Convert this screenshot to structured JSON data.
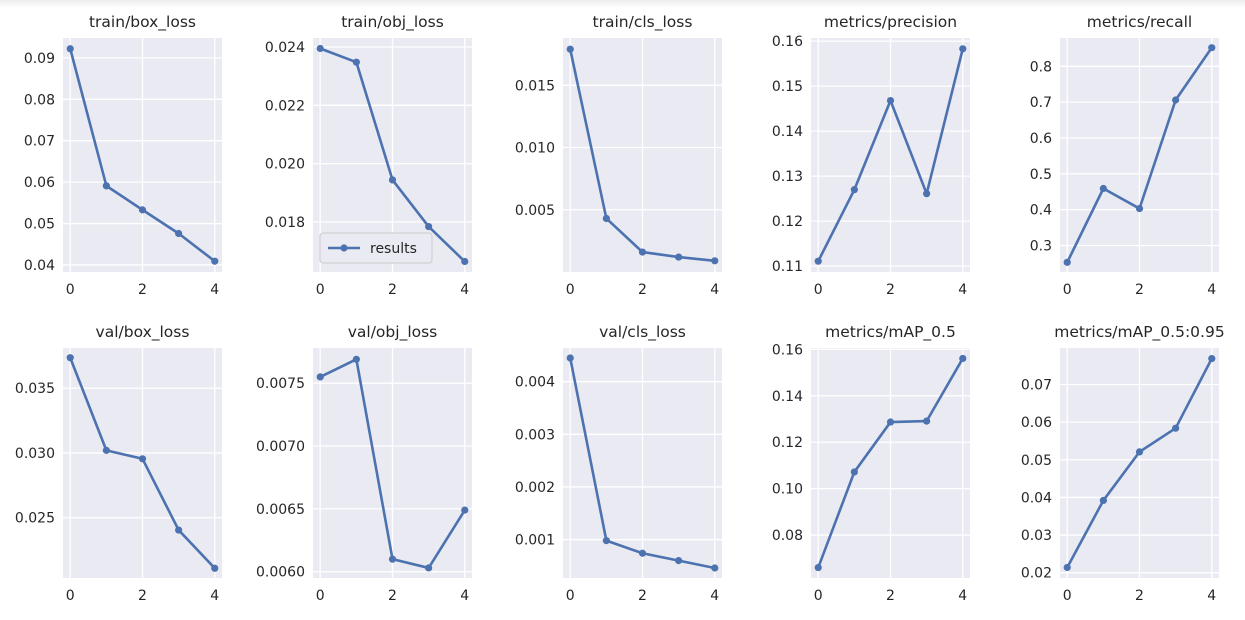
{
  "figure": {
    "accent_color": "#4c72b0",
    "plot_background": "#eaeaf2",
    "grid_color": "#ffffff",
    "legend_label": "results"
  },
  "chart_data": [
    {
      "type": "line",
      "title": "train/box_loss",
      "x": [
        0,
        1,
        2,
        3,
        4
      ],
      "series": [
        {
          "name": "results",
          "values": [
            0.0922,
            0.0591,
            0.0533,
            0.0476,
            0.0409
          ]
        }
      ],
      "xticks": [
        0,
        2,
        4
      ],
      "yticks": [
        0.04,
        0.05,
        0.06,
        0.07,
        0.08,
        0.09
      ],
      "ytick_labels": [
        "0.04",
        "0.05",
        "0.06",
        "0.07",
        "0.08",
        "0.09"
      ],
      "xlim": [
        -0.2,
        4.2
      ],
      "ylim": [
        0.0383,
        0.0948
      ],
      "grid": true,
      "legend": null
    },
    {
      "type": "line",
      "title": "train/obj_loss",
      "x": [
        0,
        1,
        2,
        3,
        4
      ],
      "series": [
        {
          "name": "results",
          "values": [
            0.02395,
            0.02348,
            0.01944,
            0.01784,
            0.01664
          ]
        }
      ],
      "xticks": [
        0,
        2,
        4
      ],
      "yticks": [
        0.018,
        0.02,
        0.022,
        0.024
      ],
      "ytick_labels": [
        "0.018",
        "0.020",
        "0.022",
        "0.024"
      ],
      "xlim": [
        -0.2,
        4.2
      ],
      "ylim": [
        0.01628,
        0.02431
      ],
      "grid": true,
      "legend": "lower-left"
    },
    {
      "type": "line",
      "title": "train/cls_loss",
      "x": [
        0,
        1,
        2,
        3,
        4
      ],
      "series": [
        {
          "name": "results",
          "values": [
            0.0179,
            0.0043,
            0.0016,
            0.0012,
            0.0009
          ]
        }
      ],
      "xticks": [
        0,
        2,
        4
      ],
      "yticks": [
        0.005,
        0.01,
        0.015
      ],
      "ytick_labels": [
        "0.005",
        "0.010",
        "0.015"
      ],
      "xlim": [
        -0.2,
        4.2
      ],
      "ylim": [
        0.0,
        0.0188
      ],
      "grid": true,
      "legend": null
    },
    {
      "type": "line",
      "title": "metrics/precision",
      "x": [
        0,
        1,
        2,
        3,
        4
      ],
      "series": [
        {
          "name": "results",
          "values": [
            0.1111,
            0.127,
            0.1468,
            0.1261,
            0.1583
          ]
        }
      ],
      "xticks": [
        0,
        2,
        4
      ],
      "yticks": [
        0.11,
        0.12,
        0.13,
        0.14,
        0.15,
        0.16
      ],
      "ytick_labels": [
        "0.11",
        "0.12",
        "0.13",
        "0.14",
        "0.15",
        "0.16"
      ],
      "xlim": [
        -0.2,
        4.2
      ],
      "ylim": [
        0.1087,
        0.1607
      ],
      "grid": true,
      "legend": null
    },
    {
      "type": "line",
      "title": "metrics/recall",
      "x": [
        0,
        1,
        2,
        3,
        4
      ],
      "series": [
        {
          "name": "results",
          "values": [
            0.253,
            0.459,
            0.403,
            0.706,
            0.852
          ]
        }
      ],
      "xticks": [
        0,
        2,
        4
      ],
      "yticks": [
        0.3,
        0.4,
        0.5,
        0.6,
        0.7,
        0.8
      ],
      "ytick_labels": [
        "0.3",
        "0.4",
        "0.5",
        "0.6",
        "0.7",
        "0.8"
      ],
      "xlim": [
        -0.2,
        4.2
      ],
      "ylim": [
        0.226,
        0.879
      ],
      "grid": true,
      "legend": null
    },
    {
      "type": "line",
      "title": "val/box_loss",
      "x": [
        0,
        1,
        2,
        3,
        4
      ],
      "series": [
        {
          "name": "results",
          "values": [
            0.03735,
            0.0302,
            0.02955,
            0.02405,
            0.0211
          ]
        }
      ],
      "xticks": [
        0,
        2,
        4
      ],
      "yticks": [
        0.025,
        0.03,
        0.035
      ],
      "ytick_labels": [
        "0.025",
        "0.030",
        "0.035"
      ],
      "xlim": [
        -0.2,
        4.2
      ],
      "ylim": [
        0.02035,
        0.0381
      ],
      "grid": true,
      "legend": null
    },
    {
      "type": "line",
      "title": "val/obj_loss",
      "x": [
        0,
        1,
        2,
        3,
        4
      ],
      "series": [
        {
          "name": "results",
          "values": [
            0.00755,
            0.00769,
            0.0061,
            0.00603,
            0.00649
          ]
        }
      ],
      "xticks": [
        0,
        2,
        4
      ],
      "yticks": [
        0.006,
        0.0065,
        0.007,
        0.0075
      ],
      "ytick_labels": [
        "0.0060",
        "0.0065",
        "0.0070",
        "0.0075"
      ],
      "xlim": [
        -0.2,
        4.2
      ],
      "ylim": [
        0.00595,
        0.00778
      ],
      "grid": true,
      "legend": null
    },
    {
      "type": "line",
      "title": "val/cls_loss",
      "x": [
        0,
        1,
        2,
        3,
        4
      ],
      "series": [
        {
          "name": "results",
          "values": [
            0.00445,
            0.00098,
            0.00074,
            0.0006,
            0.00046
          ]
        }
      ],
      "xticks": [
        0,
        2,
        4
      ],
      "yticks": [
        0.001,
        0.002,
        0.003,
        0.004
      ],
      "ytick_labels": [
        "0.001",
        "0.002",
        "0.003",
        "0.004"
      ],
      "xlim": [
        -0.2,
        4.2
      ],
      "ylim": [
        0.00027,
        0.00464
      ],
      "grid": true,
      "legend": null
    },
    {
      "type": "line",
      "title": "metrics/mAP_0.5",
      "x": [
        0,
        1,
        2,
        3,
        4
      ],
      "series": [
        {
          "name": "results",
          "values": [
            0.066,
            0.1072,
            0.1287,
            0.1291,
            0.1561
          ]
        }
      ],
      "xticks": [
        0,
        2,
        4
      ],
      "yticks": [
        0.08,
        0.1,
        0.12,
        0.14,
        0.16
      ],
      "ytick_labels": [
        "0.08",
        "0.10",
        "0.12",
        "0.14",
        "0.16"
      ],
      "xlim": [
        -0.2,
        4.2
      ],
      "ylim": [
        0.0615,
        0.1606
      ],
      "grid": true,
      "legend": null
    },
    {
      "type": "line",
      "title": "metrics/mAP_0.5:0.95",
      "x": [
        0,
        1,
        2,
        3,
        4
      ],
      "series": [
        {
          "name": "results",
          "values": [
            0.0214,
            0.0392,
            0.0521,
            0.0584,
            0.0769
          ]
        }
      ],
      "xticks": [
        0,
        2,
        4
      ],
      "yticks": [
        0.02,
        0.03,
        0.04,
        0.05,
        0.06,
        0.07
      ],
      "ytick_labels": [
        "0.02",
        "0.03",
        "0.04",
        "0.05",
        "0.06",
        "0.07"
      ],
      "xlim": [
        -0.2,
        4.2
      ],
      "ylim": [
        0.0186,
        0.0797
      ],
      "grid": true,
      "legend": null
    }
  ]
}
